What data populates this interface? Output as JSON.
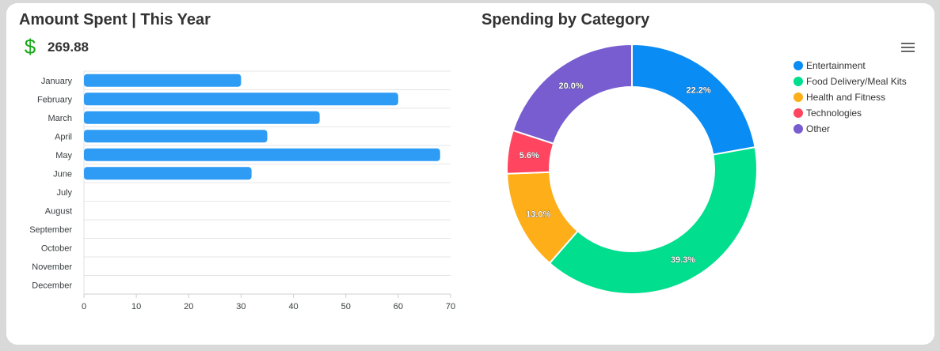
{
  "left_panel": {
    "title": "Amount Spent | This Year",
    "currency_icon": "dollar-sign-icon",
    "currency_symbol": "$",
    "total": "269.88"
  },
  "right_panel": {
    "title": "Spending by Category",
    "menu_icon": "hamburger-menu-icon"
  },
  "chart_data": [
    {
      "type": "bar",
      "orientation": "horizontal",
      "title": "",
      "categories": [
        "January",
        "February",
        "March",
        "April",
        "May",
        "June",
        "July",
        "August",
        "September",
        "October",
        "November",
        "December"
      ],
      "values": [
        30,
        60,
        45,
        35,
        68,
        32,
        null,
        null,
        null,
        null,
        null,
        null
      ],
      "xlim": [
        0,
        70
      ],
      "xticks": [
        0,
        10,
        20,
        30,
        40,
        50,
        60,
        70
      ],
      "grid": true,
      "bar_color": "#2e9bf5"
    },
    {
      "type": "pie",
      "style": "donut",
      "title": "",
      "labels": [
        "Entertainment",
        "Food Delivery/Meal Kits",
        "Health and Fitness",
        "Technologies",
        "Other"
      ],
      "values": [
        22.2,
        39.3,
        13.0,
        5.6,
        20.0
      ],
      "data_labels": [
        "22.2%",
        "39.3%",
        "13.0%",
        "5.6%",
        "20.0%"
      ],
      "colors": [
        "#0a8cf5",
        "#00de8e",
        "#feae19",
        "#ff4560",
        "#775dd0"
      ],
      "legend_position": "top-right"
    }
  ]
}
